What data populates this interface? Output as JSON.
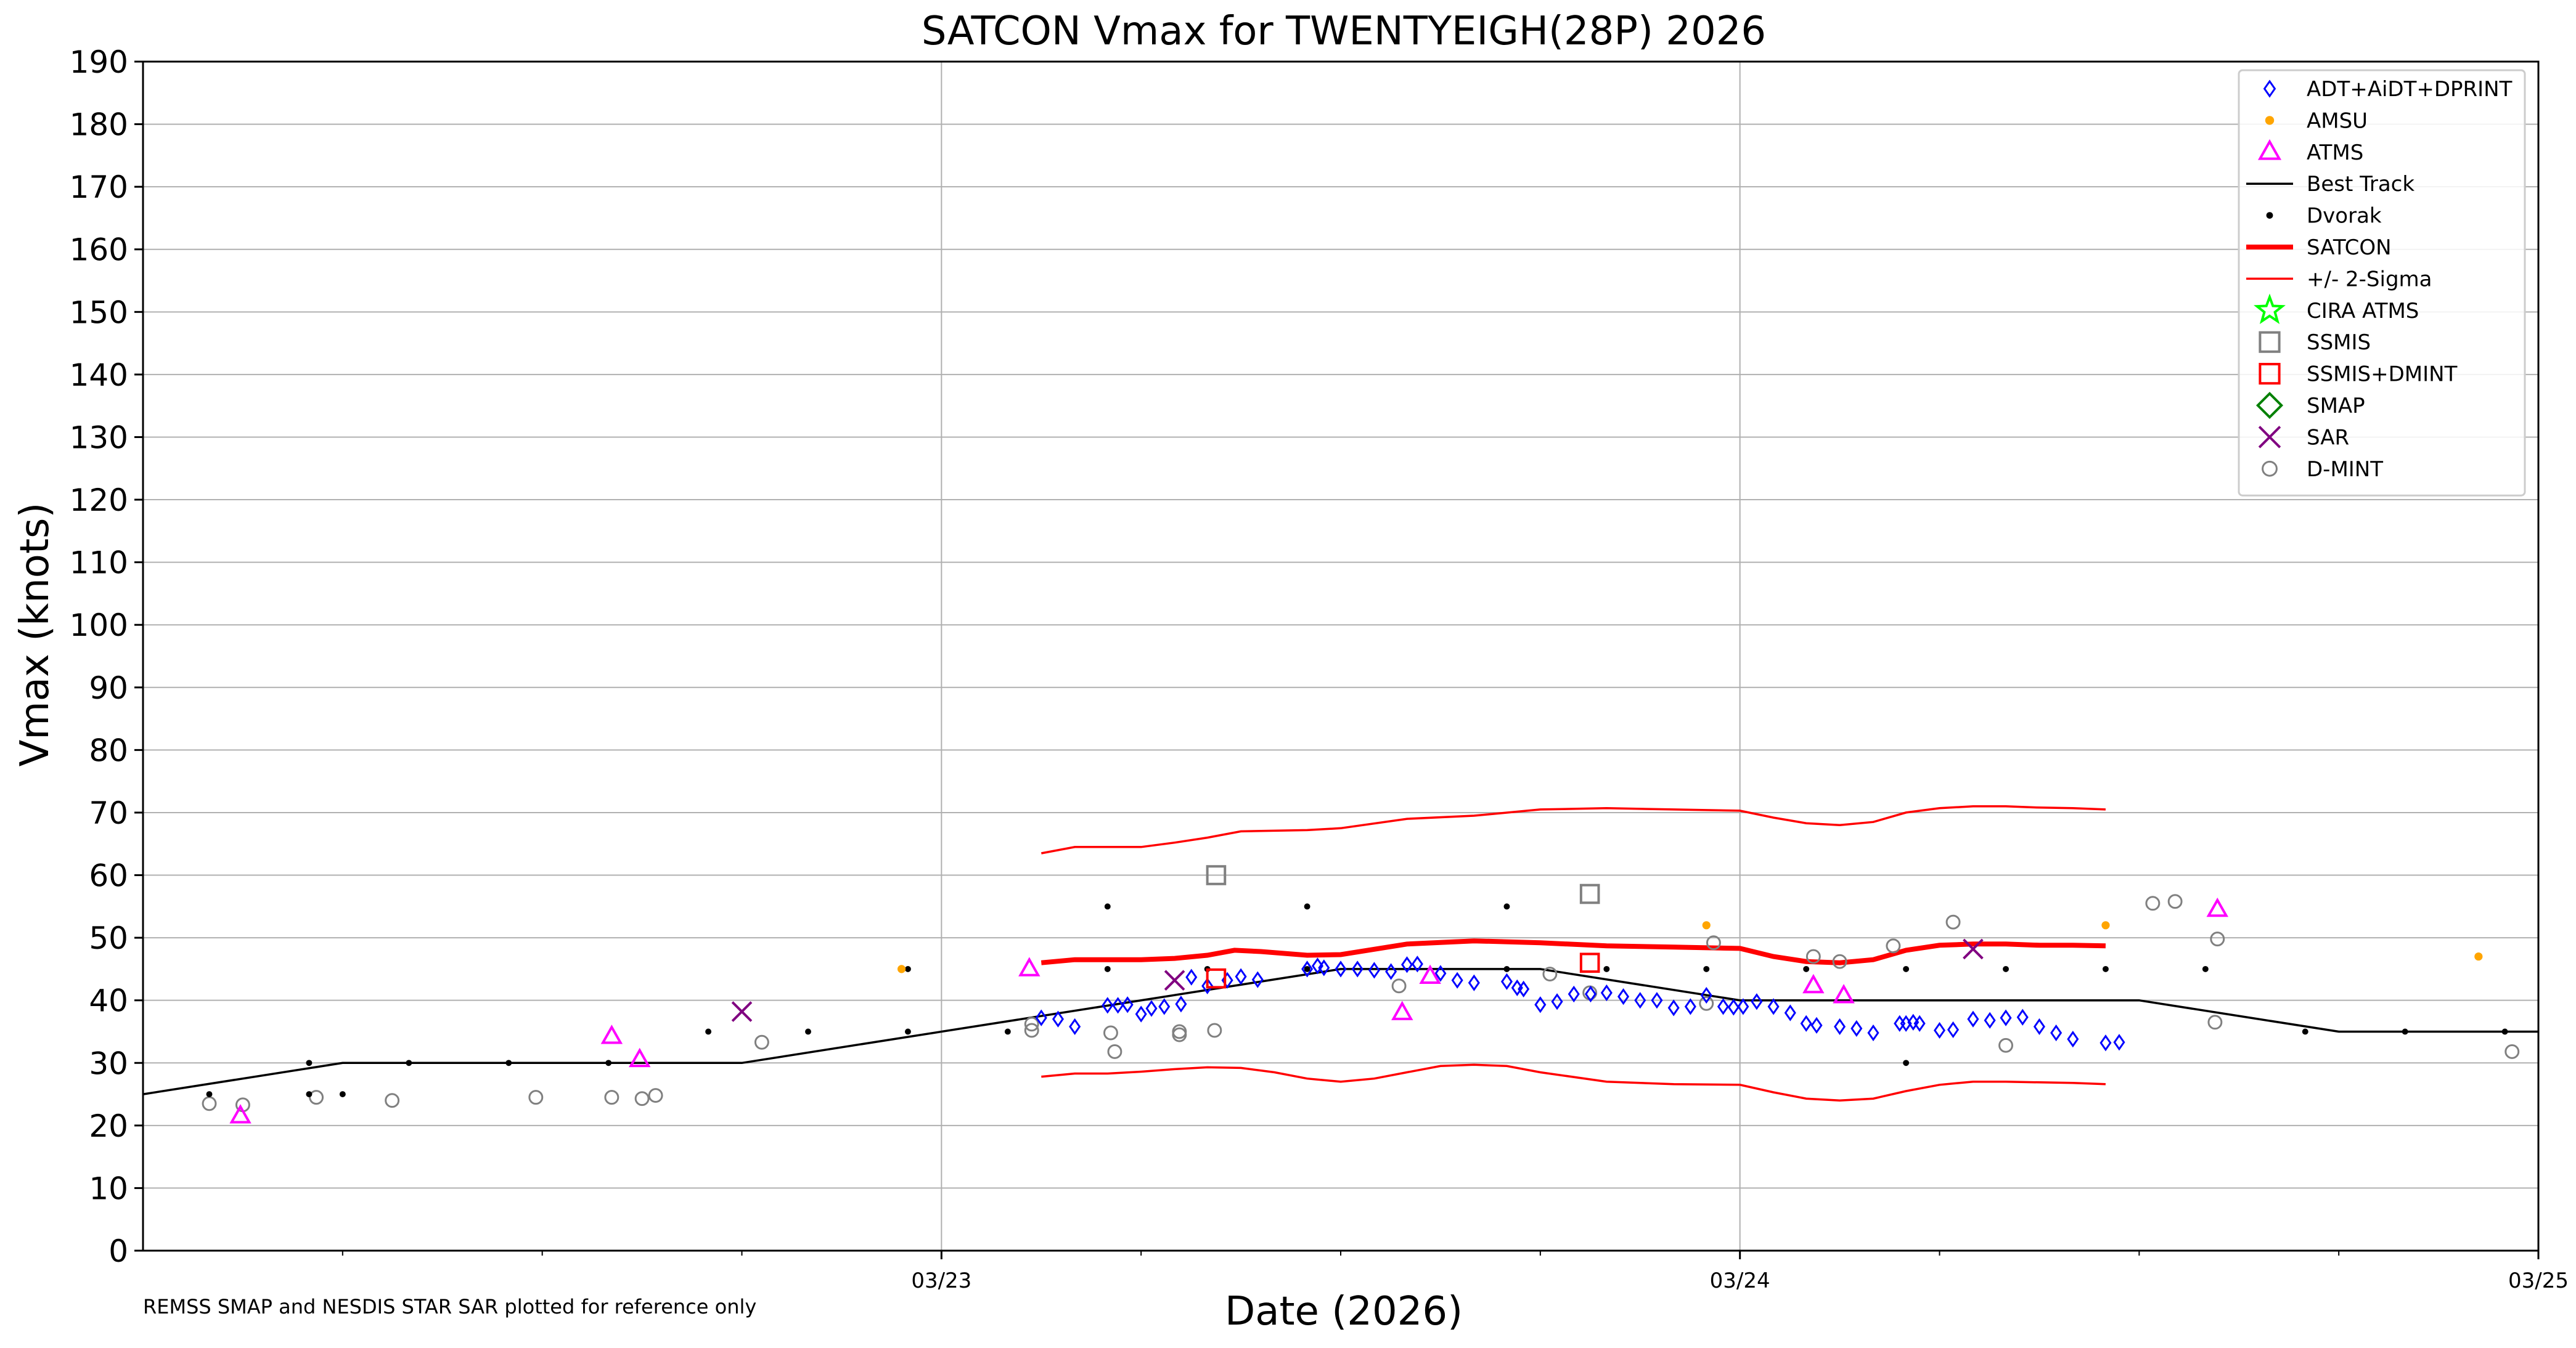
{
  "chart_data": {
    "type": "scatter",
    "title": "SATCON Vmax for TWENTYEIGH(28P) 2026",
    "xlabel": "Date (2026)",
    "ylabel": "Vmax (knots)",
    "footnote": "REMSS SMAP and NESDIS STAR SAR plotted for reference only",
    "xlim": [
      -1.0,
      2.0
    ],
    "ylim": [
      0,
      190
    ],
    "y_ticks": [
      0,
      10,
      20,
      30,
      40,
      50,
      60,
      70,
      80,
      90,
      100,
      110,
      120,
      130,
      140,
      150,
      160,
      170,
      180,
      190
    ],
    "x_ticks": [
      {
        "x": 0,
        "label": "03/23"
      },
      {
        "x": 1,
        "label": "03/24"
      },
      {
        "x": 2,
        "label": "03/25"
      }
    ],
    "x_minor_ticks": [
      -0.75,
      -0.5,
      -0.25,
      0.25,
      0.5,
      0.75,
      1.25,
      1.5,
      1.75
    ],
    "grid": true,
    "legend_position": "top-right",
    "legend": [
      {
        "key": "adt",
        "label": "ADT+AiDT+DPRINT",
        "color": "#0000ff"
      },
      {
        "key": "amsu",
        "label": "AMSU",
        "color": "#ffa500"
      },
      {
        "key": "atms",
        "label": "ATMS",
        "color": "#ff00ff"
      },
      {
        "key": "besttrack",
        "label": "Best Track",
        "color": "#000000"
      },
      {
        "key": "dvorak",
        "label": "Dvorak",
        "color": "#000000"
      },
      {
        "key": "satcon",
        "label": "SATCON",
        "color": "#ff0000"
      },
      {
        "key": "sigma",
        "label": "+/- 2-Sigma",
        "color": "#ff0000"
      },
      {
        "key": "ciraatms",
        "label": "CIRA ATMS",
        "color": "#00ff00"
      },
      {
        "key": "ssmis",
        "label": "SSMIS",
        "color": "#808080"
      },
      {
        "key": "ssmisdmint",
        "label": "SSMIS+DMINT",
        "color": "#ff0000"
      },
      {
        "key": "smap",
        "label": "SMAP",
        "color": "#008000"
      },
      {
        "key": "sar",
        "label": "SAR",
        "color": "#800080"
      },
      {
        "key": "dmint",
        "label": "D-MINT",
        "color": "#808080"
      }
    ],
    "series": {
      "besttrack": [
        [
          -1.0,
          25
        ],
        [
          -0.75,
          30
        ],
        [
          -0.25,
          30
        ],
        [
          0.5,
          45
        ],
        [
          0.75,
          45
        ],
        [
          1.0,
          40
        ],
        [
          1.5,
          40
        ],
        [
          1.75,
          35
        ],
        [
          2.0,
          35
        ]
      ],
      "satcon": [
        [
          0.125,
          46
        ],
        [
          0.167,
          46.5
        ],
        [
          0.208,
          46.5
        ],
        [
          0.25,
          46.5
        ],
        [
          0.292,
          46.7
        ],
        [
          0.333,
          47.2
        ],
        [
          0.367,
          48
        ],
        [
          0.4,
          47.8
        ],
        [
          0.458,
          47.2
        ],
        [
          0.5,
          47.3
        ],
        [
          0.583,
          49
        ],
        [
          0.667,
          49.5
        ],
        [
          0.75,
          49.2
        ],
        [
          0.833,
          48.7
        ],
        [
          0.917,
          48.5
        ],
        [
          1.0,
          48.3
        ],
        [
          1.042,
          47
        ],
        [
          1.083,
          46.2
        ],
        [
          1.125,
          46
        ],
        [
          1.167,
          46.5
        ],
        [
          1.208,
          48
        ],
        [
          1.25,
          48.8
        ],
        [
          1.292,
          49
        ],
        [
          1.333,
          49
        ],
        [
          1.375,
          48.8
        ],
        [
          1.417,
          48.8
        ],
        [
          1.458,
          48.7
        ]
      ],
      "sigma_upper": [
        [
          0.125,
          63.5
        ],
        [
          0.167,
          64.5
        ],
        [
          0.208,
          64.5
        ],
        [
          0.25,
          64.5
        ],
        [
          0.292,
          65.2
        ],
        [
          0.333,
          66
        ],
        [
          0.375,
          67
        ],
        [
          0.458,
          67.2
        ],
        [
          0.5,
          67.5
        ],
        [
          0.583,
          69
        ],
        [
          0.667,
          69.5
        ],
        [
          0.75,
          70.5
        ],
        [
          0.833,
          70.7
        ],
        [
          0.917,
          70.5
        ],
        [
          1.0,
          70.3
        ],
        [
          1.042,
          69.2
        ],
        [
          1.083,
          68.3
        ],
        [
          1.125,
          68
        ],
        [
          1.167,
          68.5
        ],
        [
          1.208,
          70
        ],
        [
          1.25,
          70.7
        ],
        [
          1.292,
          71
        ],
        [
          1.333,
          71
        ],
        [
          1.375,
          70.8
        ],
        [
          1.417,
          70.7
        ],
        [
          1.458,
          70.5
        ]
      ],
      "sigma_lower": [
        [
          0.125,
          27.8
        ],
        [
          0.167,
          28.3
        ],
        [
          0.208,
          28.3
        ],
        [
          0.25,
          28.6
        ],
        [
          0.292,
          29
        ],
        [
          0.333,
          29.3
        ],
        [
          0.375,
          29.2
        ],
        [
          0.417,
          28.5
        ],
        [
          0.458,
          27.5
        ],
        [
          0.5,
          27
        ],
        [
          0.542,
          27.5
        ],
        [
          0.583,
          28.5
        ],
        [
          0.625,
          29.5
        ],
        [
          0.667,
          29.7
        ],
        [
          0.708,
          29.5
        ],
        [
          0.75,
          28.5
        ],
        [
          0.833,
          27
        ],
        [
          0.917,
          26.6
        ],
        [
          1.0,
          26.5
        ],
        [
          1.042,
          25.3
        ],
        [
          1.083,
          24.3
        ],
        [
          1.125,
          24
        ],
        [
          1.167,
          24.3
        ],
        [
          1.208,
          25.5
        ],
        [
          1.25,
          26.5
        ],
        [
          1.292,
          27
        ],
        [
          1.333,
          27
        ],
        [
          1.375,
          26.9
        ],
        [
          1.417,
          26.8
        ],
        [
          1.458,
          26.6
        ]
      ],
      "dvorak": [
        [
          -0.917,
          25
        ],
        [
          -0.792,
          30
        ],
        [
          -0.792,
          25
        ],
        [
          -0.75,
          25
        ],
        [
          -0.667,
          30
        ],
        [
          -0.542,
          30
        ],
        [
          -0.417,
          30
        ],
        [
          -0.292,
          35
        ],
        [
          -0.167,
          35
        ],
        [
          -0.042,
          45
        ],
        [
          -0.042,
          35
        ],
        [
          0.083,
          35
        ],
        [
          0.208,
          55
        ],
        [
          0.208,
          45
        ],
        [
          0.333,
          45
        ],
        [
          0.458,
          55
        ],
        [
          0.458,
          45
        ],
        [
          0.708,
          55
        ],
        [
          0.708,
          45
        ],
        [
          0.833,
          45
        ],
        [
          0.958,
          45
        ],
        [
          1.083,
          45
        ],
        [
          1.208,
          45
        ],
        [
          1.208,
          30
        ],
        [
          1.333,
          45
        ],
        [
          1.458,
          45
        ],
        [
          1.583,
          45
        ],
        [
          1.708,
          35
        ],
        [
          1.833,
          35
        ],
        [
          1.958,
          35
        ]
      ],
      "dmint": [
        [
          -0.917,
          23.5
        ],
        [
          -0.875,
          23.3
        ],
        [
          -0.783,
          24.5
        ],
        [
          -0.688,
          24
        ],
        [
          -0.508,
          24.5
        ],
        [
          -0.413,
          24.5
        ],
        [
          -0.375,
          24.3
        ],
        [
          -0.358,
          24.8
        ],
        [
          -0.225,
          33.3
        ],
        [
          0.113,
          35.2
        ],
        [
          0.113,
          36.2
        ],
        [
          0.212,
          34.8
        ],
        [
          0.217,
          31.8
        ],
        [
          0.298,
          35
        ],
        [
          0.298,
          34.5
        ],
        [
          0.342,
          35.2
        ],
        [
          0.573,
          42.3
        ],
        [
          0.762,
          44.2
        ],
        [
          0.812,
          41.2
        ],
        [
          0.958,
          39.5
        ],
        [
          0.967,
          49.2
        ],
        [
          1.092,
          47
        ],
        [
          1.125,
          46.2
        ],
        [
          1.192,
          48.7
        ],
        [
          1.267,
          52.5
        ],
        [
          1.333,
          32.8
        ],
        [
          1.517,
          55.5
        ],
        [
          1.545,
          55.8
        ],
        [
          1.595,
          36.5
        ],
        [
          1.598,
          49.8
        ],
        [
          1.967,
          31.8
        ]
      ],
      "atms": [
        [
          -0.878,
          21.5
        ],
        [
          -0.413,
          34.2
        ],
        [
          -0.378,
          30.5
        ],
        [
          0.11,
          45
        ],
        [
          0.577,
          38
        ],
        [
          0.612,
          43.8
        ],
        [
          1.092,
          42.3
        ],
        [
          1.13,
          40.7
        ],
        [
          1.598,
          54.5
        ]
      ],
      "amsu": [
        [
          -0.05,
          45
        ],
        [
          0.958,
          52
        ],
        [
          1.458,
          52
        ],
        [
          1.925,
          47
        ]
      ],
      "ssmis": [
        [
          0.344,
          60
        ],
        [
          0.812,
          57
        ]
      ],
      "ssmisdmint": [
        [
          0.344,
          43.5
        ],
        [
          0.812,
          46
        ]
      ],
      "sar": [
        [
          -0.25,
          38.2
        ],
        [
          0.292,
          43.2
        ],
        [
          1.292,
          48.2
        ]
      ],
      "adt": [
        [
          0.125,
          37.2
        ],
        [
          0.146,
          37
        ],
        [
          0.167,
          35.8
        ],
        [
          0.208,
          39.2
        ],
        [
          0.221,
          39.2
        ],
        [
          0.233,
          39.3
        ],
        [
          0.25,
          37.8
        ],
        [
          0.263,
          38.7
        ],
        [
          0.279,
          39
        ],
        [
          0.3,
          39.4
        ],
        [
          0.313,
          43.7
        ],
        [
          0.333,
          42.3
        ],
        [
          0.358,
          43.2
        ],
        [
          0.375,
          43.8
        ],
        [
          0.396,
          43.3
        ],
        [
          0.458,
          45
        ],
        [
          0.471,
          45.5
        ],
        [
          0.479,
          45.2
        ],
        [
          0.5,
          45
        ],
        [
          0.521,
          45
        ],
        [
          0.542,
          44.8
        ],
        [
          0.563,
          44.6
        ],
        [
          0.583,
          45.7
        ],
        [
          0.596,
          45.8
        ],
        [
          0.625,
          44.3
        ],
        [
          0.646,
          43.2
        ],
        [
          0.667,
          42.8
        ],
        [
          0.708,
          43
        ],
        [
          0.721,
          42
        ],
        [
          0.729,
          41.8
        ],
        [
          0.75,
          39.3
        ],
        [
          0.771,
          39.8
        ],
        [
          0.792,
          41
        ],
        [
          0.813,
          41
        ],
        [
          0.833,
          41.2
        ],
        [
          0.854,
          40.6
        ],
        [
          0.875,
          40
        ],
        [
          0.896,
          40
        ],
        [
          0.917,
          38.8
        ],
        [
          0.938,
          39
        ],
        [
          0.958,
          40.8
        ],
        [
          0.979,
          39
        ],
        [
          0.992,
          38.9
        ],
        [
          1.004,
          39
        ],
        [
          1.021,
          39.8
        ],
        [
          1.042,
          39
        ],
        [
          1.063,
          38
        ],
        [
          1.083,
          36.3
        ],
        [
          1.096,
          36
        ],
        [
          1.125,
          35.8
        ],
        [
          1.146,
          35.5
        ],
        [
          1.167,
          34.8
        ],
        [
          1.2,
          36.3
        ],
        [
          1.208,
          36.3
        ],
        [
          1.217,
          36.5
        ],
        [
          1.225,
          36.3
        ],
        [
          1.25,
          35.2
        ],
        [
          1.267,
          35.3
        ],
        [
          1.292,
          37
        ],
        [
          1.313,
          36.8
        ],
        [
          1.333,
          37.2
        ],
        [
          1.354,
          37.3
        ],
        [
          1.375,
          35.8
        ],
        [
          1.396,
          34.8
        ],
        [
          1.417,
          33.8
        ],
        [
          1.458,
          33.2
        ],
        [
          1.475,
          33.3
        ]
      ]
    }
  }
}
